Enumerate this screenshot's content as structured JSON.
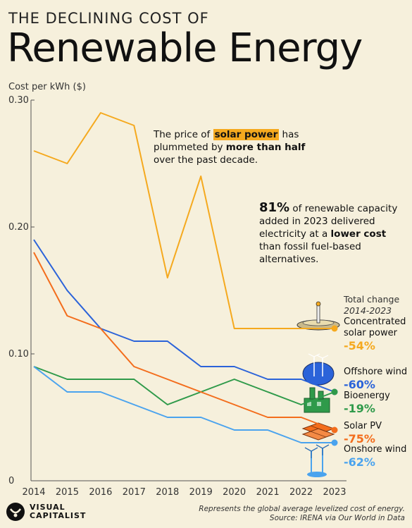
{
  "header": {
    "kicker": "THE DECLINING COST OF",
    "title": "Renewable Energy"
  },
  "chart_data": {
    "type": "line",
    "ylabel": "Cost per kWh ($)",
    "x": [
      2014,
      2015,
      2016,
      2017,
      2018,
      2019,
      2020,
      2021,
      2022,
      2023
    ],
    "xticks": [
      "2014",
      "2015",
      "2016",
      "2017",
      "2018",
      "2019",
      "2020",
      "2021",
      "2022",
      "2023"
    ],
    "yticks": [
      "0",
      "0.10",
      "0.20",
      "0.30"
    ],
    "ylim": [
      0,
      0.3
    ],
    "grid": false,
    "series": [
      {
        "name": "Concentrated solar power",
        "color": "#f5a91e",
        "values": [
          0.26,
          0.25,
          0.29,
          0.28,
          0.16,
          0.24,
          0.12,
          0.12,
          0.12,
          0.12
        ]
      },
      {
        "name": "Offshore wind",
        "color": "#2b63d9",
        "values": [
          0.19,
          0.15,
          0.12,
          0.11,
          0.11,
          0.09,
          0.09,
          0.08,
          0.08,
          0.07
        ]
      },
      {
        "name": "Bioenergy",
        "color": "#2f9a4a",
        "values": [
          0.09,
          0.08,
          0.08,
          0.08,
          0.06,
          0.07,
          0.08,
          0.07,
          0.06,
          0.07
        ]
      },
      {
        "name": "Solar PV",
        "color": "#f36d1c",
        "values": [
          0.18,
          0.13,
          0.12,
          0.09,
          0.08,
          0.07,
          0.06,
          0.05,
          0.05,
          0.04
        ]
      },
      {
        "name": "Onshore wind",
        "color": "#4aa3ee",
        "values": [
          0.09,
          0.07,
          0.07,
          0.06,
          0.05,
          0.05,
          0.04,
          0.04,
          0.03,
          0.03
        ]
      }
    ],
    "total_change": {
      "heading": "Total change",
      "years": "2014-2023",
      "items": [
        {
          "label": "Concentrated solar power",
          "label_line1": "Concentrated",
          "label_line2": "solar power",
          "change": "-54%"
        },
        {
          "label": "Offshore wind",
          "change": "-60%"
        },
        {
          "label": "Bioenergy",
          "change": "-19%"
        },
        {
          "label": "Solar PV",
          "change": "-75%"
        },
        {
          "label": "Onshore wind",
          "change": "-62%"
        }
      ]
    },
    "annotations": {
      "solar": {
        "pre": "The price of ",
        "highlight": "solar power",
        "mid": " has plummeted by ",
        "bold": "more than half",
        "post": " over the past decade."
      },
      "capacity": {
        "big": "81%",
        "pre": " of renewable capacity added in 2023 delivered electricity at a ",
        "bold": "lower cost",
        "post": " than fossil fuel-based alternatives."
      }
    }
  },
  "footer": {
    "brand_line1": "VISUAL",
    "brand_line2": "CAPITALIST",
    "note": "Represents the global average levelized cost of energy.",
    "source": "Source: IRENA via Our World in Data"
  },
  "colors": {
    "background": "#f6f0dc",
    "csp": "#f5a91e",
    "offshore": "#2b63d9",
    "bio": "#2f9a4a",
    "solar_pv": "#f36d1c",
    "onshore": "#4aa3ee"
  }
}
